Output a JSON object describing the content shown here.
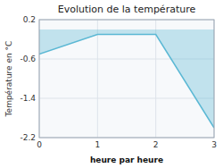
{
  "chart_data": {
    "type": "area",
    "title": "Evolution de la température",
    "x_label": "heure par heure",
    "y_label": "Température en °C",
    "x": [
      0,
      1,
      2,
      3
    ],
    "values": [
      -0.5,
      -0.1,
      -0.1,
      -2.0
    ],
    "color": "#5bb8d4",
    "xlim": [
      0,
      3
    ],
    "ylim": [
      -2.2,
      0.2
    ],
    "xticks": [
      0,
      1,
      2,
      3
    ],
    "yticks": [
      0.2,
      -0.6,
      -1.4,
      -2.2
    ],
    "grid": true
  }
}
